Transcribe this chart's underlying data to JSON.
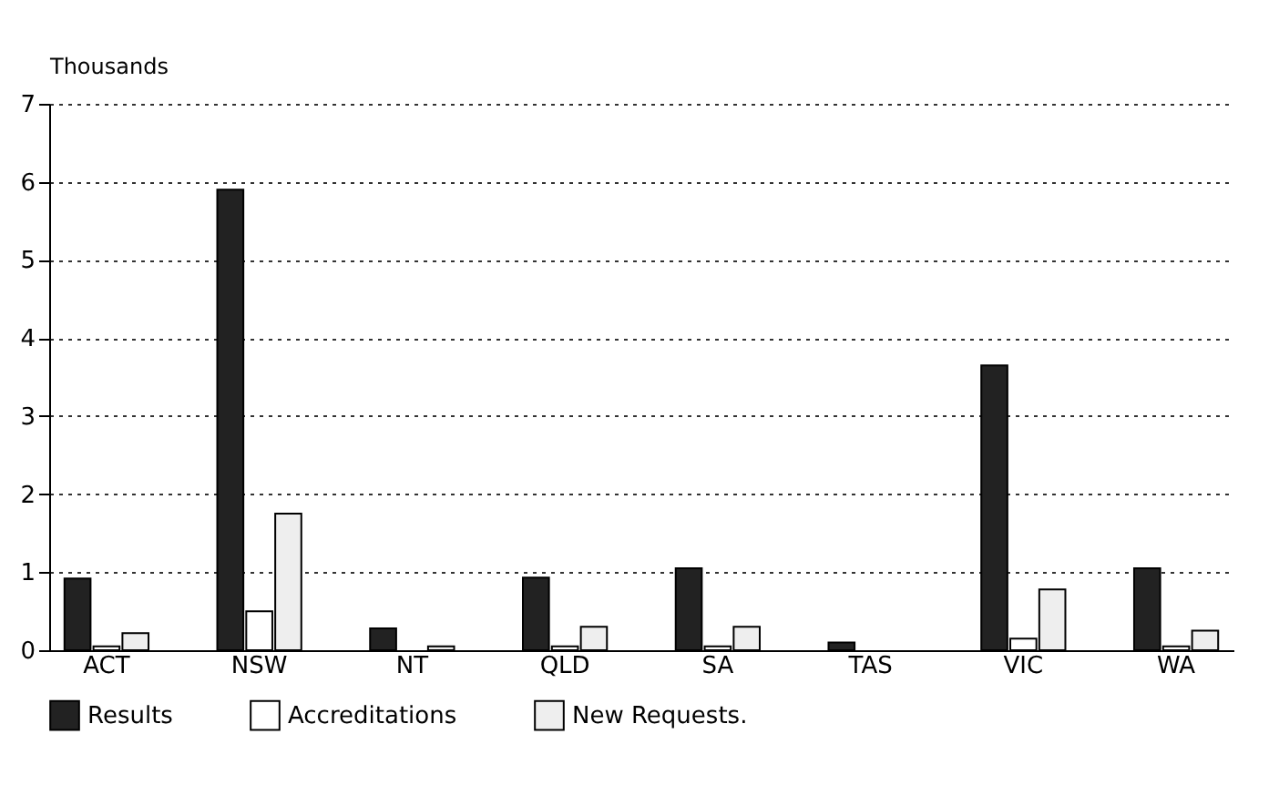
{
  "chart_data": {
    "type": "bar",
    "ylabel": "Thousands",
    "categories": [
      "ACT",
      "NSW",
      "NT",
      "QLD",
      "SA",
      "TAS",
      "VIC",
      "WA"
    ],
    "series": [
      {
        "name": "Results",
        "color": "#222222",
        "values": [
          0.92,
          5.9,
          0.28,
          0.93,
          1.05,
          0.1,
          3.65,
          1.05
        ]
      },
      {
        "name": "Accreditations",
        "color": "#ffffff",
        "values": [
          0.05,
          0.5,
          null,
          0.05,
          0.05,
          null,
          0.15,
          0.05
        ]
      },
      {
        "name": "New Requests.",
        "color": "#eeeeee",
        "values": [
          0.22,
          1.75,
          0.05,
          0.3,
          0.3,
          null,
          0.78,
          0.25
        ]
      }
    ],
    "ylim": [
      0,
      7
    ],
    "yticks": [
      0,
      1,
      2,
      3,
      4,
      5,
      6,
      7
    ],
    "grid": "y",
    "legend": "bottom"
  }
}
